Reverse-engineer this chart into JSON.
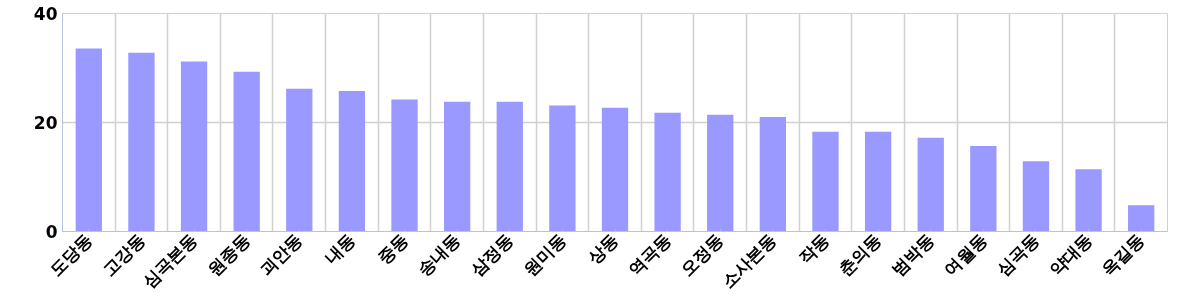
{
  "chart_data": {
    "type": "bar",
    "categories": [
      "도당동",
      "고강동",
      "심곡본동",
      "원종동",
      "괴안동",
      "내동",
      "중동",
      "송내동",
      "삼정동",
      "원미동",
      "상동",
      "역곡동",
      "오정동",
      "소사본동",
      "작동",
      "춘의동",
      "범박동",
      "여월동",
      "심곡동",
      "약대동",
      "옥길동"
    ],
    "values": [
      33.6,
      32.8,
      31.2,
      29.3,
      26.2,
      25.8,
      24.2,
      23.8,
      23.8,
      23.1,
      22.7,
      21.8,
      21.4,
      21.0,
      18.3,
      18.3,
      17.2,
      15.7,
      12.9,
      11.4,
      4.8
    ],
    "color": "#9999ff",
    "ylim": [
      0,
      40
    ],
    "yticks": [
      0,
      20,
      40
    ],
    "grid": true
  }
}
